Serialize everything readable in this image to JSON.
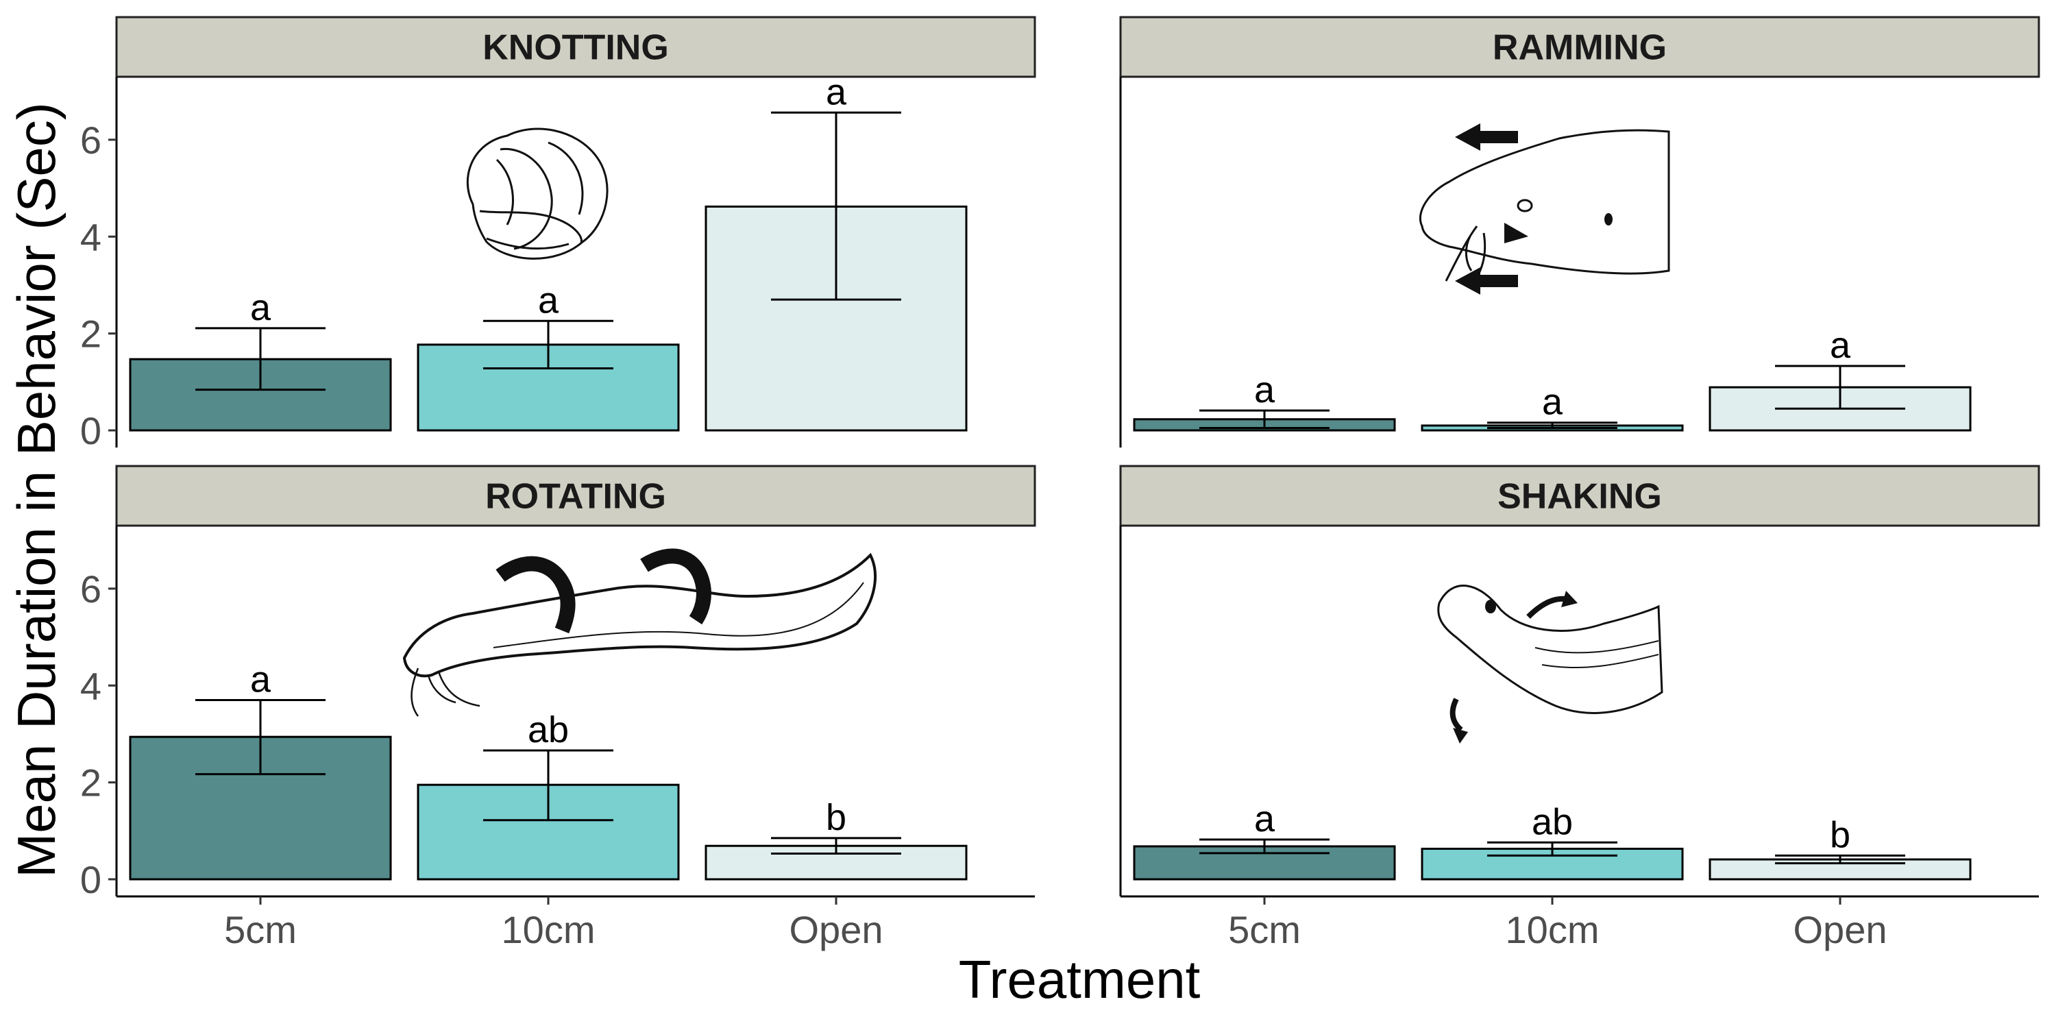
{
  "figure": {
    "xlabel": "Treatment",
    "ylabel": "Mean Duration in Behavior (Sec)"
  },
  "colors": {
    "5cm": "#558b8b",
    "10cm": "#7acfcf",
    "Open": "#e1eeee",
    "strip": "#cfcfc3"
  },
  "chart_data": [
    {
      "type": "bar",
      "title": "KNOTTING",
      "icon": "knotted-eel-icon",
      "categories": [
        "5cm",
        "10cm",
        "Open"
      ],
      "values": [
        1.47,
        1.77,
        4.62
      ],
      "error_low": [
        0.84,
        1.28,
        2.7
      ],
      "error_high": [
        2.11,
        2.26,
        6.56
      ],
      "significance": [
        "a",
        "a",
        "a"
      ],
      "ylim": [
        0,
        7.3
      ],
      "yticks": [
        0,
        2,
        4,
        6
      ]
    },
    {
      "type": "bar",
      "title": "RAMMING",
      "icon": "ramming-eel-head-icon",
      "categories": [
        "5cm",
        "10cm",
        "Open"
      ],
      "values": [
        0.23,
        0.1,
        0.89
      ],
      "error_low": [
        0.05,
        0.05,
        0.45
      ],
      "error_high": [
        0.41,
        0.16,
        1.33
      ],
      "significance": [
        "a",
        "a",
        "a"
      ],
      "ylim": [
        0,
        7.3
      ],
      "yticks": [
        0,
        2,
        4,
        6
      ]
    },
    {
      "type": "bar",
      "title": "ROTATING",
      "icon": "rotating-eel-icon",
      "categories": [
        "5cm",
        "10cm",
        "Open"
      ],
      "values": [
        2.94,
        1.95,
        0.69
      ],
      "error_low": [
        2.17,
        1.22,
        0.53
      ],
      "error_high": [
        3.7,
        2.66,
        0.85
      ],
      "significance": [
        "a",
        "ab",
        "b"
      ],
      "ylim": [
        0,
        7.3
      ],
      "yticks": [
        0,
        2,
        4,
        6
      ]
    },
    {
      "type": "bar",
      "title": "SHAKING",
      "icon": "shaking-eel-icon",
      "categories": [
        "5cm",
        "10cm",
        "Open"
      ],
      "values": [
        0.68,
        0.63,
        0.41
      ],
      "error_low": [
        0.54,
        0.49,
        0.33
      ],
      "error_high": [
        0.82,
        0.76,
        0.49
      ],
      "significance": [
        "a",
        "ab",
        "b"
      ],
      "ylim": [
        0,
        7.3
      ],
      "yticks": [
        0,
        2,
        4,
        6
      ]
    }
  ]
}
